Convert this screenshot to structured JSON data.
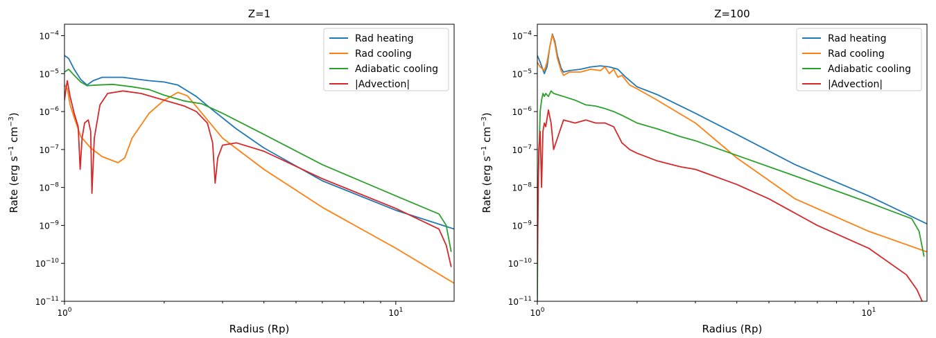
{
  "chart_data": [
    {
      "type": "line",
      "title": "Z=1",
      "xlabel": "Radius (Rp)",
      "ylabel": "Rate (erg s$^{-1}$ cm$^{-3}$)",
      "xscale": "log",
      "yscale": "log",
      "xlim": [
        1.0,
        15.0
      ],
      "ylim": [
        1e-11,
        0.0002
      ],
      "xticks": [
        {
          "v": 1,
          "label": "10^0"
        },
        {
          "v": 10,
          "label": "10^1"
        }
      ],
      "yticks": [
        {
          "v": 1e-11,
          "label": "10^-11"
        },
        {
          "v": 1e-10,
          "label": "10^-10"
        },
        {
          "v": 1e-09,
          "label": "10^-9"
        },
        {
          "v": 1e-08,
          "label": "10^-8"
        },
        {
          "v": 1e-07,
          "label": "10^-7"
        },
        {
          "v": 1e-06,
          "label": "10^-6"
        },
        {
          "v": 1e-05,
          "label": "10^-5"
        },
        {
          "v": 0.0001,
          "label": "10^-4"
        }
      ],
      "legend": "top-right",
      "series": [
        {
          "name": "Rad heating",
          "color": "#1f77b4",
          "x": [
            1.0,
            1.03,
            1.07,
            1.12,
            1.17,
            1.22,
            1.3,
            1.5,
            1.8,
            2.0,
            2.2,
            2.5,
            2.8,
            3.3,
            4.0,
            6.0,
            10.0,
            15.0
          ],
          "y": [
            3e-05,
            2.5e-05,
            1.3e-05,
            7e-06,
            5e-06,
            6.5e-06,
            8e-06,
            8e-06,
            6.5e-06,
            6e-06,
            5e-06,
            2.5e-06,
            1.1e-06,
            3.5e-07,
            1.1e-07,
            1.5e-08,
            2.5e-09,
            8e-10
          ]
        },
        {
          "name": "Rad cooling",
          "color": "#ff7f0e",
          "x": [
            1.0,
            1.02,
            1.04,
            1.07,
            1.12,
            1.2,
            1.3,
            1.45,
            1.52,
            1.6,
            1.8,
            2.0,
            2.2,
            2.35,
            2.6,
            3.0,
            4.0,
            6.0,
            10.0,
            15.0
          ],
          "y": [
            5e-06,
            4e-06,
            1.5e-06,
            7e-07,
            2.2e-07,
            1.1e-07,
            6.5e-08,
            4.5e-08,
            6e-08,
            2e-07,
            9e-07,
            2e-06,
            3.2e-06,
            2.6e-06,
            9e-07,
            2e-07,
            3e-08,
            3e-09,
            2.5e-10,
            3e-11
          ]
        },
        {
          "name": "Adiabatic cooling",
          "color": "#2ca02c",
          "x": [
            1.0,
            1.03,
            1.07,
            1.12,
            1.17,
            1.25,
            1.4,
            1.6,
            1.8,
            2.0,
            2.3,
            2.6,
            3.0,
            4.0,
            6.0,
            10.0,
            13.5,
            14.2,
            14.7
          ],
          "y": [
            1.1e-05,
            1.3e-05,
            9e-06,
            6e-06,
            4.8e-06,
            5e-06,
            5.2e-06,
            4.5e-06,
            3.8e-06,
            2.7e-06,
            1.9e-06,
            1.6e-06,
            9e-07,
            2.5e-07,
            4e-08,
            6e-09,
            2e-09,
            1e-09,
            2e-10
          ]
        },
        {
          "name": "|Advection|",
          "color": "#d62728",
          "x": [
            1.0,
            1.01,
            1.02,
            1.04,
            1.07,
            1.1,
            1.115,
            1.13,
            1.15,
            1.18,
            1.2,
            1.21,
            1.23,
            1.28,
            1.35,
            1.5,
            1.7,
            2.0,
            2.3,
            2.5,
            2.7,
            2.8,
            2.85,
            2.9,
            3.0,
            3.3,
            4.0,
            6.0,
            10.0,
            13.5,
            14.2,
            14.7
          ],
          "y": [
            2e-06,
            4e-06,
            6.5e-06,
            2.5e-06,
            9e-07,
            4e-07,
            3e-08,
            2e-07,
            5e-07,
            6e-07,
            3e-07,
            7e-09,
            2e-07,
            1.5e-06,
            3e-06,
            3.5e-06,
            3e-06,
            2e-06,
            1.4e-06,
            1e-06,
            5e-07,
            1.5e-07,
            1.3e-08,
            6e-08,
            1.3e-07,
            1.5e-07,
            9e-08,
            1.7e-08,
            2.8e-09,
            8e-10,
            3e-10,
            8e-11
          ]
        }
      ]
    },
    {
      "type": "line",
      "title": "Z=100",
      "xlabel": "Radius (Rp)",
      "ylabel": "Rate (erg s$^{-1}$ cm$^{-3}$)",
      "xscale": "log",
      "yscale": "log",
      "xlim": [
        1.0,
        15.0
      ],
      "ylim": [
        1e-11,
        0.0002
      ],
      "xticks": [
        {
          "v": 1,
          "label": "10^0"
        },
        {
          "v": 10,
          "label": "10^1"
        }
      ],
      "yticks": [
        {
          "v": 1e-11,
          "label": "10^-11"
        },
        {
          "v": 1e-10,
          "label": "10^-10"
        },
        {
          "v": 1e-09,
          "label": "10^-9"
        },
        {
          "v": 1e-08,
          "label": "10^-8"
        },
        {
          "v": 1e-07,
          "label": "10^-7"
        },
        {
          "v": 1e-06,
          "label": "10^-6"
        },
        {
          "v": 1e-05,
          "label": "10^-5"
        },
        {
          "v": 0.0001,
          "label": "10^-4"
        }
      ],
      "legend": "top-right",
      "series": [
        {
          "name": "Rad heating",
          "color": "#1f77b4",
          "x": [
            1.0,
            1.02,
            1.05,
            1.07,
            1.09,
            1.11,
            1.13,
            1.15,
            1.18,
            1.2,
            1.25,
            1.35,
            1.45,
            1.55,
            1.65,
            1.75,
            1.85,
            2.0,
            2.3,
            3.0,
            4.0,
            6.0,
            10.0,
            15.0
          ],
          "y": [
            3e-05,
            2e-05,
            1e-05,
            1.5e-05,
            5e-05,
            0.00011,
            7e-05,
            3e-05,
            1.4e-05,
            1.1e-05,
            1.2e-05,
            1.3e-05,
            1.5e-05,
            1.6e-05,
            1.5e-05,
            1.3e-05,
            8e-06,
            4.5e-06,
            2.8e-06,
            9e-07,
            2.5e-07,
            4e-08,
            6e-09,
            1.1e-09
          ]
        },
        {
          "name": "Rad cooling",
          "color": "#ff7f0e",
          "x": [
            1.0,
            1.02,
            1.05,
            1.07,
            1.09,
            1.11,
            1.13,
            1.15,
            1.18,
            1.2,
            1.25,
            1.35,
            1.45,
            1.55,
            1.6,
            1.65,
            1.7,
            1.75,
            1.8,
            1.9,
            2.0,
            2.3,
            3.0,
            4.0,
            6.0,
            10.0,
            15.0
          ],
          "y": [
            2e-05,
            1.5e-05,
            1.2e-05,
            2e-05,
            5e-05,
            0.000105,
            6e-05,
            2.5e-05,
            1.2e-05,
            9e-06,
            1.1e-05,
            1.1e-05,
            1.3e-05,
            1.2e-05,
            1.5e-05,
            1e-05,
            1.3e-05,
            8e-06,
            9e-06,
            5e-06,
            4e-06,
            2e-06,
            5e-07,
            6e-08,
            5e-09,
            7e-10,
            2e-10
          ]
        },
        {
          "name": "Adiabatic cooling",
          "color": "#2ca02c",
          "x": [
            1.0,
            1.005,
            1.01,
            1.02,
            1.03,
            1.04,
            1.05,
            1.06,
            1.08,
            1.1,
            1.12,
            1.15,
            1.2,
            1.3,
            1.4,
            1.5,
            1.6,
            1.7,
            1.8,
            2.0,
            2.3,
            2.7,
            3.0,
            4.0,
            6.0,
            10.0,
            13.5,
            14.2,
            14.7
          ],
          "y": [
            1e-11,
            8e-09,
            5e-08,
            1e-06,
            2e-06,
            3e-06,
            2.5e-06,
            3e-06,
            2.5e-06,
            3.5e-06,
            3e-06,
            2.8e-06,
            2.5e-06,
            2e-06,
            1.5e-06,
            1.4e-06,
            1.2e-06,
            1e-06,
            8e-07,
            5e-07,
            3.5e-07,
            2.2e-07,
            1.7e-07,
            7e-08,
            2e-08,
            4e-09,
            1.5e-09,
            7e-10,
            1.5e-10
          ]
        },
        {
          "name": "|Advection|",
          "color": "#d62728",
          "x": [
            1.0,
            1.005,
            1.01,
            1.02,
            1.03,
            1.04,
            1.05,
            1.06,
            1.08,
            1.1,
            1.12,
            1.15,
            1.2,
            1.3,
            1.4,
            1.5,
            1.6,
            1.7,
            1.8,
            1.9,
            2.0,
            2.3,
            2.7,
            3.0,
            4.0,
            5.0,
            7.0,
            10.0,
            13.0,
            14.0,
            14.5
          ],
          "y": [
            1e-10,
            3e-09,
            1e-07,
            3e-07,
            1e-08,
            3e-07,
            5e-07,
            4e-07,
            1.1e-06,
            5e-07,
            1e-07,
            2e-07,
            6e-07,
            5e-07,
            6e-07,
            5e-07,
            5e-07,
            4e-07,
            1.5e-07,
            1e-07,
            8e-08,
            5e-08,
            3.5e-08,
            3e-08,
            1.2e-08,
            5e-09,
            1e-09,
            2.5e-10,
            5e-11,
            2e-11,
            1e-11
          ]
        }
      ]
    }
  ]
}
